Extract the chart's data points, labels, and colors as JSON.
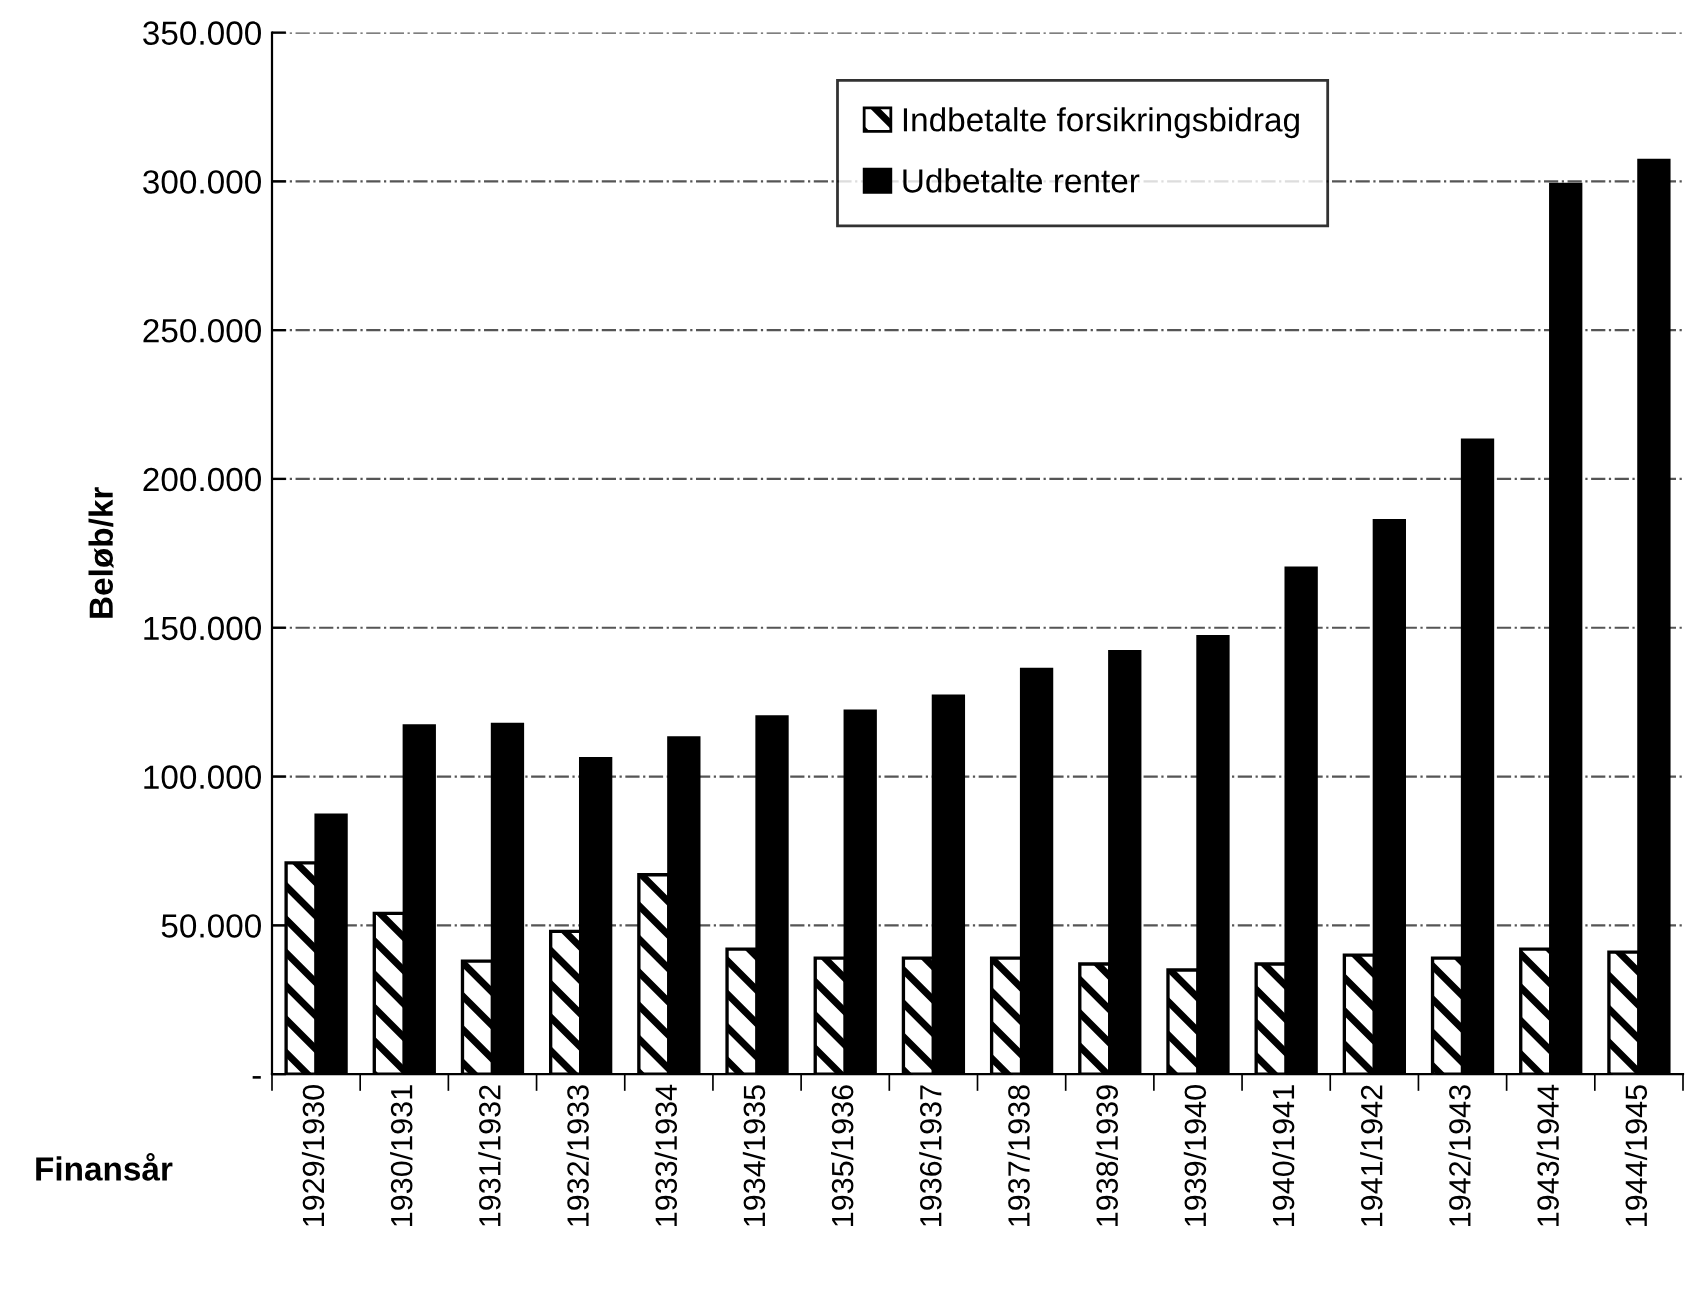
{
  "chart_data": {
    "type": "bar",
    "xlabel": "Finansår",
    "ylabel": "Beløb/kr",
    "categories": [
      "1929/1930",
      "1930/1931",
      "1931/1932",
      "1932/1933",
      "1933/1934",
      "1934/1935",
      "1935/1936",
      "1936/1937",
      "1937/1938",
      "1938/1939",
      "1939/1940",
      "1940/1941",
      "1941/1942",
      "1942/1943",
      "1943/1944",
      "1944/1945"
    ],
    "series": [
      {
        "name": "Indbetalte forsikringsbidrag",
        "color": "#000000",
        "values": [
          71000,
          54000,
          38000,
          48000,
          67000,
          42000,
          39000,
          39000,
          39000,
          37000,
          35000,
          37000,
          40000,
          39000,
          42000,
          41000
        ]
      },
      {
        "name": "Udbetalte renter",
        "color": "#000000",
        "values": [
          87000,
          117000,
          117500,
          106000,
          113000,
          120000,
          122000,
          127000,
          136000,
          142000,
          147000,
          170000,
          186000,
          213000,
          299000,
          307000
        ]
      }
    ],
    "ylim": [
      0,
      350000
    ],
    "yticks": [
      {
        "value": 0,
        "label": "-"
      },
      {
        "value": 50000,
        "label": "50.000"
      },
      {
        "value": 100000,
        "label": "100.000"
      },
      {
        "value": 150000,
        "label": "150.000"
      },
      {
        "value": 200000,
        "label": "200.000"
      },
      {
        "value": 250000,
        "label": "250.000"
      },
      {
        "value": 300000,
        "label": "300.000"
      },
      {
        "value": 350000,
        "label": "350.000"
      }
    ],
    "grid": "y",
    "legend": "top right"
  }
}
